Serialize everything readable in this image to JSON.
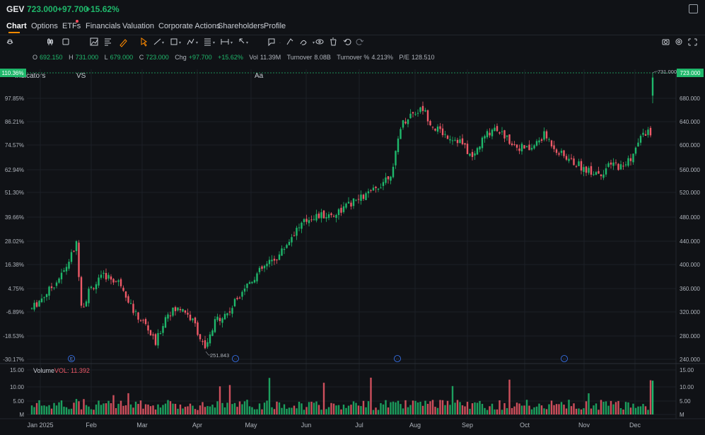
{
  "header": {
    "symbol": "GEV",
    "price": "723.000",
    "change": "+97.700",
    "change_pct": "+15.62%"
  },
  "tabs": [
    {
      "label": "Chart"
    },
    {
      "label": "Options"
    },
    {
      "label": "ETFs"
    },
    {
      "label": "Financials"
    },
    {
      "label": "Valuation"
    },
    {
      "label": "Corporate Actions"
    },
    {
      "label": "Shareholders"
    },
    {
      "label": "Profile"
    }
  ],
  "toolbar": {
    "indicators_label": "Indicators",
    "vs_label": "VS",
    "text_label": "Aa"
  },
  "ohlc": {
    "open_label": "O",
    "open": "692.150",
    "high_label": "H",
    "high": "731.000",
    "low_label": "L",
    "low": "679.000",
    "close_label": "C",
    "close": "723.000",
    "chg_label": "Chg",
    "chg": "+97.700",
    "chg_pct": "+15.62%",
    "vol_label": "Vol",
    "vol": "11.39M",
    "turnover_label": "Turnover",
    "turnover": "8.08B",
    "turnover_pct_label": "Turnover %",
    "turnover_pct": "4.213%",
    "pe_label": "P/E",
    "pe": "128.510"
  },
  "volume_panel": {
    "title": "Volume",
    "value_text": "VOL: 11.392"
  },
  "colors": {
    "up": "#1fb86b",
    "down": "#ef5a68",
    "accent": "#ff8a00",
    "grid": "#1c2027"
  },
  "chart_data": {
    "type": "candlestick",
    "y_right_ticks": [
      "723.000",
      "680.000",
      "640.000",
      "600.000",
      "560.000",
      "520.000",
      "480.000",
      "440.000",
      "400.000",
      "360.000",
      "320.000",
      "280.000",
      "240.000"
    ],
    "y_left_ticks": [
      "110.36%",
      "97.85%",
      "86.21%",
      "74.57%",
      "62.94%",
      "51.30%",
      "39.66%",
      "28.02%",
      "16.38%",
      "4.75%",
      "-6.89%",
      "-18.53%",
      "-30.17%"
    ],
    "x_ticks": [
      "Jan 2025",
      "Feb",
      "Mar",
      "Apr",
      "May",
      "Jun",
      "Jul",
      "Aug",
      "Sep",
      "Oct",
      "Nov",
      "Dec"
    ],
    "price_labels": {
      "high": "731.000",
      "low": "251.843"
    },
    "volume_ticks_right": [
      "15.00",
      "10.00",
      "5.00",
      "M"
    ],
    "volume_ticks_left": [
      "15.00",
      "10.00",
      "5.00",
      "M"
    ],
    "ylim": [
      240,
      731
    ],
    "markers": [
      {
        "label": "E"
      },
      {
        "label": "···"
      },
      {
        "label": "···"
      },
      {
        "label": "···"
      }
    ]
  }
}
